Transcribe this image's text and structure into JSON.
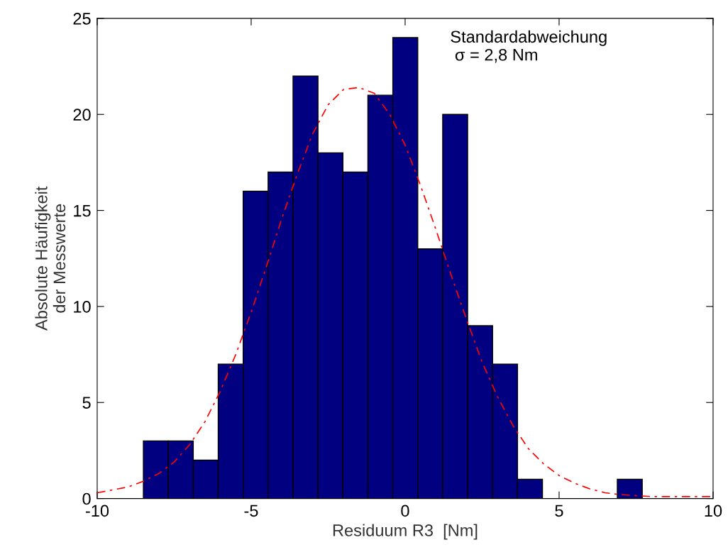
{
  "chart_data": {
    "type": "histogram",
    "xlabel": "Residuum R3  [Nm]",
    "ylabel": "Absolute Häufigkeit\nder Messwerte",
    "bins": [
      -8.5,
      -7.69,
      -6.88,
      -6.07,
      -5.26,
      -4.45,
      -3.64,
      -2.83,
      -2.02,
      -1.21,
      -0.4,
      0.41,
      1.22,
      2.03,
      2.84,
      3.65,
      4.46,
      5.27,
      6.08,
      6.89,
      7.7
    ],
    "values": [
      3,
      3,
      2,
      7,
      16,
      17,
      22,
      18,
      17,
      21,
      24,
      13,
      20,
      9,
      7,
      1,
      0,
      0,
      0,
      1
    ],
    "color": "#000080",
    "series": [
      {
        "type": "line",
        "color": "#ff0000",
        "line_style": "dashed",
        "x": [
          -10,
          -9,
          -8.5,
          -8,
          -7.5,
          -7,
          -6.5,
          -6,
          -5.5,
          -5,
          -4.5,
          -4,
          -3.5,
          -3,
          -2.5,
          -2,
          -1.5,
          -1,
          -0.5,
          0,
          0.5,
          1,
          1.5,
          2,
          2.5,
          3,
          3.5,
          4,
          4.5,
          5,
          5.5,
          6,
          6.5,
          7,
          8,
          9,
          10
        ],
        "values": [
          0.3,
          0.6,
          0.9,
          1.3,
          1.9,
          2.8,
          4.0,
          5.6,
          7.5,
          9.7,
          12.1,
          14.6,
          16.9,
          19.0,
          20.5,
          21.3,
          21.4,
          21.1,
          20.0,
          18.4,
          16.3,
          14.0,
          11.6,
          9.3,
          7.1,
          5.3,
          3.8,
          2.6,
          1.8,
          1.2,
          0.8,
          0.5,
          0.3,
          0.2,
          0.1,
          0.1,
          0.1
        ]
      }
    ],
    "annotations": [
      "Standardabweichung\n σ = 2,8 Nm"
    ],
    "xlim": [
      -10,
      10
    ],
    "ylim": [
      0,
      25
    ],
    "xticks": [
      -10,
      -5,
      0,
      5,
      10
    ],
    "yticks": [
      0,
      5,
      10,
      15,
      20,
      25
    ],
    "grid": false,
    "legend": false
  }
}
